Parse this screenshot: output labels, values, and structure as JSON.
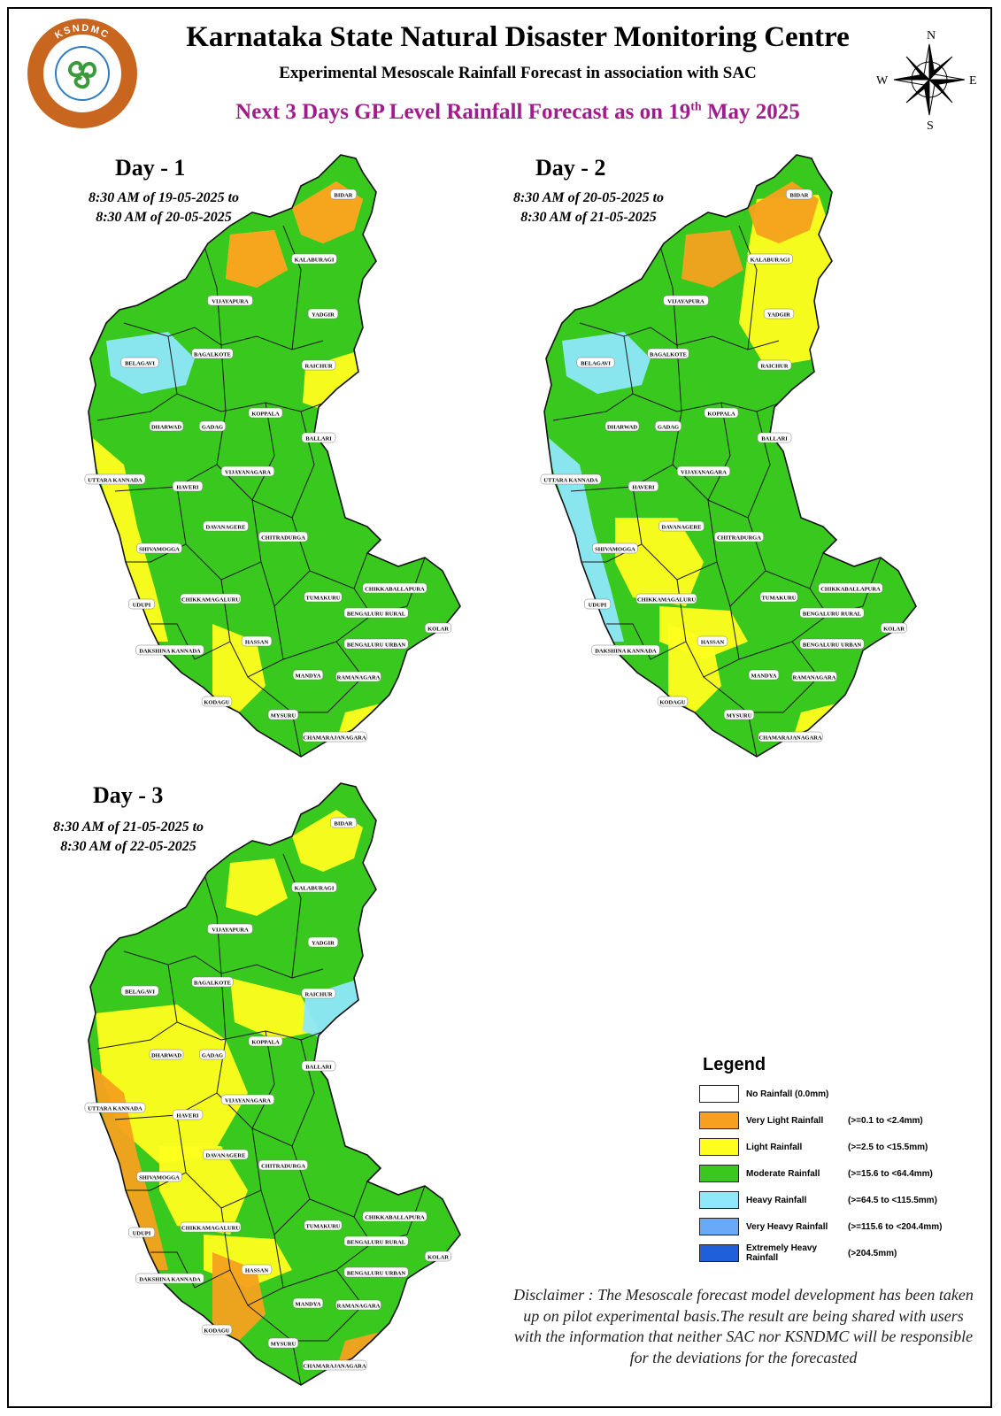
{
  "header": {
    "org_title": "Karnataka State Natural Disaster Monitoring Centre",
    "subtitle": "Experimental Mesoscale Rainfall Forecast in association with SAC",
    "headline_main": "Next 3 Days GP Level Rainfall Forecast  as on 19",
    "headline_sup": "th",
    "headline_end": " May 2025"
  },
  "logo": {
    "text": "KSNDMC",
    "icon": "ksndmc-triskele-logo"
  },
  "compass": {
    "n": "N",
    "s": "S",
    "e": "E",
    "w": "W",
    "icon": "compass-rose-icon"
  },
  "colors": {
    "no_rain": "#ffffff",
    "very_light": "#f5a11e",
    "light": "#ffff1e",
    "moderate": "#39c81e",
    "heavy": "#8ee8fa",
    "very_heavy": "#6aa9f5",
    "extremely_heavy": "#1f5fd9",
    "headline": "#a01e8c"
  },
  "days": [
    {
      "title": "Day - 1",
      "period_line1": "8:30 AM of 19-05-2025 to",
      "period_line2": "8:30 AM of 20-05-2025",
      "base_class": "moderate",
      "patches": [
        {
          "cls": "light",
          "area": "north"
        },
        {
          "cls": "light",
          "area": "east"
        },
        {
          "cls": "light",
          "area": "coast"
        },
        {
          "cls": "light",
          "area": "south"
        },
        {
          "cls": "heavy",
          "area": "northwest"
        },
        {
          "cls": "very_light",
          "area": "north"
        }
      ]
    },
    {
      "title": "Day - 2",
      "period_line1": "8:30 AM of 20-05-2025 to",
      "period_line2": "8:30 AM of 21-05-2025",
      "base_class": "moderate",
      "patches": [
        {
          "cls": "light",
          "area": "northeast"
        },
        {
          "cls": "very_light",
          "area": "north"
        },
        {
          "cls": "heavy",
          "area": "northwest"
        },
        {
          "cls": "heavy",
          "area": "coast"
        },
        {
          "cls": "light",
          "area": "central"
        },
        {
          "cls": "light",
          "area": "south"
        }
      ]
    },
    {
      "title": "Day - 3",
      "period_line1": "8:30 AM of 21-05-2025 to",
      "period_line2": "8:30 AM of 22-05-2025",
      "base_class": "moderate",
      "patches": [
        {
          "cls": "light",
          "area": "west"
        },
        {
          "cls": "light",
          "area": "central"
        },
        {
          "cls": "very_light",
          "area": "coast"
        },
        {
          "cls": "very_light",
          "area": "south"
        },
        {
          "cls": "heavy",
          "area": "east"
        },
        {
          "cls": "light",
          "area": "north"
        }
      ]
    }
  ],
  "district_labels": {
    "day1": [
      "BIDAR",
      "KALABURAGI",
      "VIJAYAPURA",
      "YADGIR",
      "BELAGAVI",
      "BAGALKOTE",
      "RAICHUR",
      "KOPPALA",
      "DHARWAD",
      "GADAG",
      "BALLARI",
      "UTTARA KANNADA",
      "HAVERI",
      "VIJAYANAGARA",
      "DAVANAGERE",
      "CHITRADURGA",
      "SHIVAMOGGA",
      "CHIKKABALLAPURA",
      "UDUPI",
      "CHIKKAMAGALURU",
      "TUMAKURU",
      "BENGALURU RURAL",
      "KOLAR",
      "HASSAN",
      "DAKSHINA KANNADA",
      "BENGALURU URBAN",
      "MANDYA",
      "RAMANAGARA",
      "KODAGU",
      "MYSURU",
      "CHAMARAJANAGARA"
    ],
    "day2": [
      "BIDAR",
      "KALABURAGI",
      "VIJAYAPURA",
      "YADGIR",
      "BELAGAVI",
      "BAGALKOTE",
      "RAICHUR",
      "KOPPALA",
      "DHARWAD",
      "GADAG",
      "BALLARI",
      "UTTARA KANNADA",
      "HAVERI",
      "VIJAYANAGARA",
      "DAVANAGERE",
      "CHITRADURGA",
      "SHIVAMOGGA",
      "CHIKKABALLAPURA",
      "UDUPI",
      "CHIKKAMAGALURU",
      "TUMAKURU",
      "BENGALURU RURAL",
      "KOLAR",
      "HASSAN",
      "DAKSHINA KANNADA",
      "BENGALURU URBAN",
      "MANDYA",
      "RAMANAGARA",
      "KODAGU",
      "MYSURU",
      "CHAMARAJANAGARA"
    ],
    "day3": [
      "BIDAR",
      "KALABURAGI",
      "VIJAYAPURA",
      "YADGIR",
      "BELAGAVI",
      "BAGALKOTE",
      "RAICHUR",
      "KOPPALA",
      "DHARWAD",
      "GADAG",
      "BALLARI",
      "UTTARA KANNADA",
      "HAVERI",
      "VIJAYANAGARA",
      "DAVANAGERE",
      "CHITRADURGA",
      "SHIVAMOGGA",
      "CHIKKABALLAPURA",
      "UDUPI",
      "CHIKKAMAGALURU",
      "TUMAKURU",
      "BENGALURU RURAL",
      "KOLAR",
      "HASSAN",
      "DAKSHINA KANNADA",
      "BENGALURU URBAN",
      "MANDYA",
      "RAMANAGARA",
      "KODAGU",
      "MYSURU",
      "CHAMARAJANAGARA"
    ]
  },
  "legend": {
    "title": "Legend",
    "items": [
      {
        "name": "No Rainfall (0.0mm)",
        "range": "",
        "color": "#ffffff"
      },
      {
        "name": "Very Light Rainfall",
        "range": "(>=0.1 to <2.4mm)",
        "color": "#f5a11e"
      },
      {
        "name": "Light Rainfall",
        "range": "(>=2.5 to <15.5mm)",
        "color": "#ffff1e"
      },
      {
        "name": "Moderate Rainfall",
        "range": "(>=15.6 to <64.4mm)",
        "color": "#39c81e"
      },
      {
        "name": "Heavy Rainfall",
        "range": "(>=64.5 to <115.5mm)",
        "color": "#8ee8fa"
      },
      {
        "name": "Very Heavy Rainfall",
        "range": "(>=115.6 to <204.4mm)",
        "color": "#6aa9f5"
      },
      {
        "name": "Extremely Heavy Rainfall",
        "range": "(>204.5mm)",
        "color": "#1f5fd9"
      }
    ]
  },
  "disclaimer": "Disclaimer : The Mesoscale forecast model development has been taken up on pilot experimental basis.The result are being shared with users with the information that neither SAC nor KSNDMC will be responsible  for the deviations for the forecasted"
}
